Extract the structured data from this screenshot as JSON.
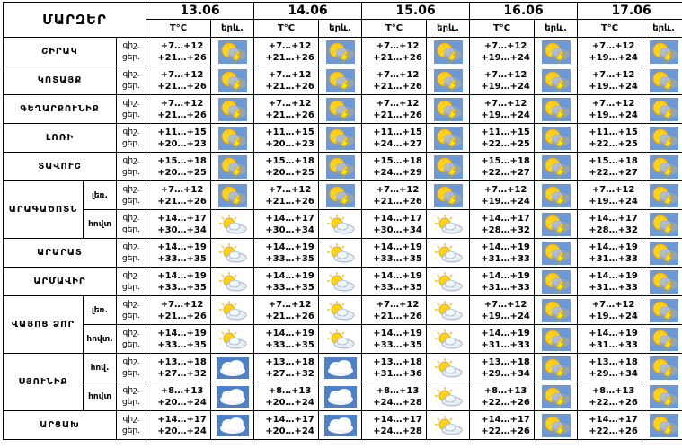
{
  "header": {
    "title": "ՄԱՐԶԵՐ",
    "dates": [
      "13.06",
      "14.06",
      "15.06",
      "16.06",
      "17.06"
    ],
    "temp_label": "T°C",
    "icon_label": "երև.",
    "night_label": "գիշ.",
    "day_label": "ցեր."
  },
  "icons": {
    "sun-cloud-lightning": "sun-cloud-lightning-icon",
    "sun-cloud": "sun-cloud-icon",
    "cloud": "cloud-icon"
  },
  "regions": [
    {
      "name": "ՇԻՐԱԿ",
      "sub": "",
      "days": [
        {
          "night": "+7…+12",
          "day": "+21…+26",
          "icon": "sun-cloud-lightning"
        },
        {
          "night": "+7…+12",
          "day": "+21…+26",
          "icon": "sun-cloud-lightning"
        },
        {
          "night": "+7…+12",
          "day": "+21…+26",
          "icon": "sun-cloud-lightning"
        },
        {
          "night": "+7…+12",
          "day": "+19…+24",
          "icon": "sun-cloud-lightning"
        },
        {
          "night": "+7…+12",
          "day": "+19…+24",
          "icon": "sun-cloud-lightning"
        }
      ]
    },
    {
      "name": "ԿՈՏԱՅՔ",
      "sub": "",
      "days": [
        {
          "night": "+7…+12",
          "day": "+21…+26",
          "icon": "sun-cloud-lightning"
        },
        {
          "night": "+7…+12",
          "day": "+21…+26",
          "icon": "sun-cloud-lightning"
        },
        {
          "night": "+7…+12",
          "day": "+21…+26",
          "icon": "sun-cloud-lightning"
        },
        {
          "night": "+7…+12",
          "day": "+19…+24",
          "icon": "sun-cloud-lightning"
        },
        {
          "night": "+7…+12",
          "day": "+19…+24",
          "icon": "sun-cloud-lightning"
        }
      ]
    },
    {
      "name": "ԳԵՂԱՐՔՈՒՆԻՔ",
      "sub": "",
      "days": [
        {
          "night": "+7…+12",
          "day": "+21…+26",
          "icon": "sun-cloud-lightning"
        },
        {
          "night": "+7…+12",
          "day": "+21…+26",
          "icon": "sun-cloud-lightning"
        },
        {
          "night": "+7…+12",
          "day": "+21…+26",
          "icon": "sun-cloud-lightning"
        },
        {
          "night": "+7…+12",
          "day": "+19…+24",
          "icon": "sun-cloud-lightning"
        },
        {
          "night": "+7…+12",
          "day": "+19…+24",
          "icon": "sun-cloud-lightning"
        }
      ]
    },
    {
      "name": "ԼՈՌԻ",
      "sub": "",
      "days": [
        {
          "night": "+11…+15",
          "day": "+20…+23",
          "icon": "sun-cloud-lightning"
        },
        {
          "night": "+11…+15",
          "day": "+20…+23",
          "icon": "sun-cloud-lightning"
        },
        {
          "night": "+11…+15",
          "day": "+24…+27",
          "icon": "sun-cloud-lightning"
        },
        {
          "night": "+11…+15",
          "day": "+22…+25",
          "icon": "sun-cloud-lightning"
        },
        {
          "night": "+11…+15",
          "day": "+22…+25",
          "icon": "sun-cloud-lightning"
        }
      ]
    },
    {
      "name": "ՏԱՎՈՒՇ",
      "sub": "",
      "days": [
        {
          "night": "+15…+18",
          "day": "+20…+25",
          "icon": "sun-cloud-lightning"
        },
        {
          "night": "+15…+18",
          "day": "+20…+25",
          "icon": "sun-cloud-lightning"
        },
        {
          "night": "+15…+18",
          "day": "+24…+29",
          "icon": "sun-cloud-lightning"
        },
        {
          "night": "+15…+18",
          "day": "+22…+27",
          "icon": "sun-cloud-lightning"
        },
        {
          "night": "+15…+18",
          "day": "+22…+27",
          "icon": "sun-cloud-lightning"
        }
      ]
    },
    {
      "name": "ԱՐԱԳԱԾՈՏՆ",
      "sub": "լեռ.",
      "days": [
        {
          "night": "+7…+12",
          "day": "+21…+26",
          "icon": "sun-cloud-lightning"
        },
        {
          "night": "+7…+12",
          "day": "+21…+26",
          "icon": "sun-cloud-lightning"
        },
        {
          "night": "+7…+12",
          "day": "+21…+26",
          "icon": "sun-cloud-lightning"
        },
        {
          "night": "+7…+12",
          "day": "+19…+24",
          "icon": "sun-cloud-lightning"
        },
        {
          "night": "+7…+12",
          "day": "+19…+24",
          "icon": "sun-cloud-lightning"
        }
      ]
    },
    {
      "name": "",
      "sub": "հովտ",
      "days": [
        {
          "night": "+14…+17",
          "day": "+30…+34",
          "icon": "sun-cloud"
        },
        {
          "night": "+14…+17",
          "day": "+30…+34",
          "icon": "sun-cloud"
        },
        {
          "night": "+14…+17",
          "day": "+30…+34",
          "icon": "sun-cloud"
        },
        {
          "night": "+14…+17",
          "day": "+28…+32",
          "icon": "sun-cloud-lightning"
        },
        {
          "night": "+14…+17",
          "day": "+28…+32",
          "icon": "sun-cloud-lightning"
        }
      ]
    },
    {
      "name": "ԱՐԱՐԱՏ",
      "sub": "",
      "days": [
        {
          "night": "+14…+19",
          "day": "+33…+35",
          "icon": "sun-cloud"
        },
        {
          "night": "+14…+19",
          "day": "+33…+35",
          "icon": "sun-cloud"
        },
        {
          "night": "+14…+19",
          "day": "+33…+35",
          "icon": "sun-cloud"
        },
        {
          "night": "+14…+19",
          "day": "+31…+33",
          "icon": "sun-cloud-lightning"
        },
        {
          "night": "+14…+19",
          "day": "+31…+33",
          "icon": "sun-cloud-lightning"
        }
      ]
    },
    {
      "name": "ԱՐՄԱՎԻՐ",
      "sub": "",
      "days": [
        {
          "night": "+14…+19",
          "day": "+33…+35",
          "icon": "sun-cloud"
        },
        {
          "night": "+14…+19",
          "day": "+33…+35",
          "icon": "sun-cloud"
        },
        {
          "night": "+14…+19",
          "day": "+33…+35",
          "icon": "sun-cloud"
        },
        {
          "night": "+14…+19",
          "day": "+31…+33",
          "icon": "sun-cloud-lightning"
        },
        {
          "night": "+14…+19",
          "day": "+31…+33",
          "icon": "sun-cloud-lightning"
        }
      ]
    },
    {
      "name": "ՎԱՅՈՑ ՁՈՐ",
      "sub": "լեռ.",
      "days": [
        {
          "night": "+7…+12",
          "day": "+21…+26",
          "icon": "sun-cloud"
        },
        {
          "night": "+7…+12",
          "day": "+21…+26",
          "icon": "sun-cloud"
        },
        {
          "night": "+7…+12",
          "day": "+21…+26",
          "icon": "sun-cloud"
        },
        {
          "night": "+7…+12",
          "day": "+19…+24",
          "icon": "sun-cloud-lightning"
        },
        {
          "night": "+7…+12",
          "day": "+19…+24",
          "icon": "sun-cloud-lightning"
        }
      ]
    },
    {
      "name": "",
      "sub": "հովտ.",
      "days": [
        {
          "night": "+14…+19",
          "day": "+33…+35",
          "icon": "sun-cloud"
        },
        {
          "night": "+14…+19",
          "day": "+33…+35",
          "icon": "sun-cloud"
        },
        {
          "night": "+14…+19",
          "day": "+33…+35",
          "icon": "sun-cloud"
        },
        {
          "night": "+14…+19",
          "day": "+31…+33",
          "icon": "sun-cloud-lightning"
        },
        {
          "night": "+14…+19",
          "day": "+31…+33",
          "icon": "sun-cloud-lightning"
        }
      ]
    },
    {
      "name": "ՍՅՈՒՆԻՔ",
      "sub": "հով.",
      "days": [
        {
          "night": "+13…+18",
          "day": "+27…+32",
          "icon": "cloud"
        },
        {
          "night": "+13…+18",
          "day": "+27…+32",
          "icon": "cloud"
        },
        {
          "night": "+13…+18",
          "day": "+31…+36",
          "icon": "sun-cloud"
        },
        {
          "night": "+13…+18",
          "day": "+29…+34",
          "icon": "sun-cloud-lightning"
        },
        {
          "night": "+13…+18",
          "day": "+29…+34",
          "icon": "sun-cloud-lightning"
        }
      ]
    },
    {
      "name": "",
      "sub": "հովտ",
      "days": [
        {
          "night": "+8…+13",
          "day": "+20…+24",
          "icon": "cloud"
        },
        {
          "night": "+8…+13",
          "day": "+20…+24",
          "icon": "cloud"
        },
        {
          "night": "+8…+13",
          "day": "+24…+28",
          "icon": "sun-cloud"
        },
        {
          "night": "+8…+13",
          "day": "+22…+26",
          "icon": "sun-cloud-lightning"
        },
        {
          "night": "+8…+13",
          "day": "+22…+26",
          "icon": "sun-cloud-lightning"
        }
      ]
    },
    {
      "name": "ԱՐՑԱԽ",
      "sub": "",
      "days": [
        {
          "night": "+14…+17",
          "day": "+20…+24",
          "icon": "cloud"
        },
        {
          "night": "+14…+17",
          "day": "+20…+24",
          "icon": "cloud"
        },
        {
          "night": "+14…+17",
          "day": "+24…+28",
          "icon": "sun-cloud"
        },
        {
          "night": "+14…+17",
          "day": "+22…+26",
          "icon": "sun-cloud-lightning"
        },
        {
          "night": "+14…+17",
          "day": "+22…+26",
          "icon": "sun-cloud-lightning"
        }
      ]
    }
  ]
}
